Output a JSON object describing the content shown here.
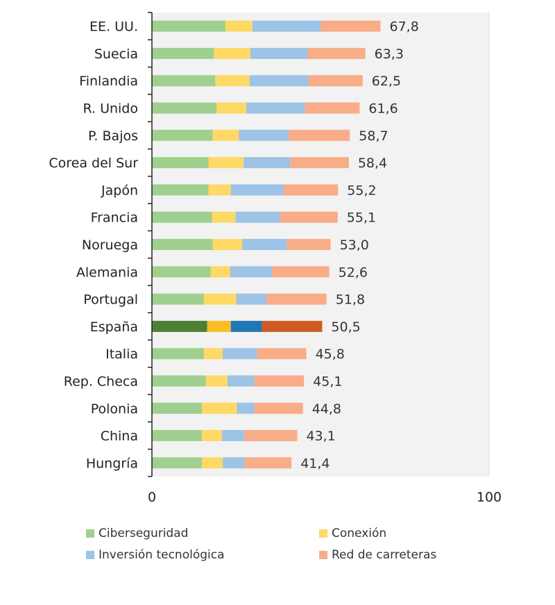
{
  "chart_data": {
    "type": "bar",
    "orientation": "horizontal",
    "stacked": true,
    "title": "",
    "xlabel": "",
    "ylabel": "",
    "xlim": [
      0,
      100
    ],
    "xticks": [
      "0",
      "100"
    ],
    "categories": [
      "EE. UU.",
      "Suecia",
      "Finlandia",
      "R. Unido",
      "P. Bajos",
      "Corea del Sur",
      "Japón",
      "Francia",
      "Noruega",
      "Alemania",
      "Portugal",
      "España",
      "Italia",
      "Rep. Checa",
      "Polonia",
      "China",
      "Hungría"
    ],
    "totals": [
      "67,8",
      "63,3",
      "62,5",
      "61,6",
      "58,7",
      "58,4",
      "55,2",
      "55,1",
      "53,0",
      "52,6",
      "51,8",
      "50,5",
      "45,8",
      "45,1",
      "44,8",
      "43,1",
      "41,4"
    ],
    "highlight": "España",
    "series": [
      {
        "name": "Ciberseguridad",
        "color": "#9fd08f",
        "highlight_color": "#4e7f32",
        "values": [
          21.8,
          18.4,
          18.8,
          19.2,
          18.0,
          16.8,
          16.8,
          17.8,
          18.0,
          17.4,
          15.4,
          16.4,
          15.4,
          16.0,
          14.8,
          14.8,
          14.8
        ]
      },
      {
        "name": "Conexión",
        "color": "#ffd966",
        "highlight_color": "#fbbd24",
        "values": [
          8.0,
          10.8,
          10.2,
          8.8,
          7.8,
          10.4,
          6.6,
          7.0,
          8.8,
          5.8,
          9.6,
          7.0,
          5.6,
          6.4,
          10.4,
          6.0,
          6.2
        ]
      },
      {
        "name": "Inversión tecnológica",
        "color": "#9dc3e6",
        "highlight_color": "#1f78b4",
        "values": [
          20.2,
          17.0,
          17.4,
          17.4,
          14.8,
          13.8,
          15.6,
          13.2,
          13.2,
          12.4,
          9.0,
          9.2,
          10.2,
          8.0,
          5.2,
          6.6,
          6.4
        ]
      },
      {
        "name": "Red de carreteras",
        "color": "#f8ad88",
        "highlight_color": "#cf5b24",
        "values": [
          17.8,
          17.1,
          16.1,
          16.2,
          18.1,
          17.4,
          16.2,
          17.1,
          13.0,
          17.0,
          17.8,
          17.9,
          14.6,
          14.7,
          14.4,
          15.7,
          14.0
        ]
      }
    ],
    "legend": [
      "Ciberseguridad",
      "Conexión",
      "Inversión tecnológica",
      "Red de carreteras"
    ],
    "legend_position": "bottom",
    "plot_background": "#f2f2f2"
  }
}
